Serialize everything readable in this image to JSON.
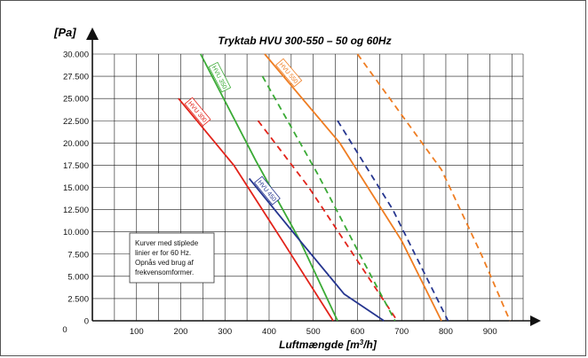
{
  "chart_data": {
    "type": "line",
    "title": "Tryktab HVU 300-550 – 50 og 60Hz",
    "ylabel": "[Pa]",
    "xlabel_main": "Luftmængde [m",
    "xlabel_sup": "3",
    "xlabel_end": "/h]",
    "xlim": [
      0,
      975
    ],
    "ylim": [
      0,
      30000
    ],
    "x_ticks": [
      100,
      200,
      300,
      400,
      500,
      600,
      700,
      800,
      900
    ],
    "y_ticks": [
      0,
      2500,
      5000,
      7500,
      10000,
      12500,
      15000,
      17500,
      20000,
      22500,
      25000,
      27500,
      30000
    ],
    "y_tick_labels": [
      "0",
      "2.500",
      "5.000",
      "7.500",
      "10.000",
      "12.500",
      "15.000",
      "17.500",
      "20.000",
      "22.500",
      "25.000",
      "27.500",
      "30.000"
    ],
    "grid": true,
    "series": [
      {
        "name": "HVU 300",
        "color": "#e2231a",
        "dash": false,
        "points": [
          [
            195,
            25000
          ],
          [
            320,
            17500
          ],
          [
            430,
            9000
          ],
          [
            545,
            0
          ]
        ]
      },
      {
        "name": "",
        "color": "#e2231a",
        "dash": true,
        "points": [
          [
            375,
            22500
          ],
          [
            490,
            15000
          ],
          [
            590,
            7500
          ],
          [
            690,
            0
          ]
        ]
      },
      {
        "name": "HVU 350",
        "color": "#3aaa35",
        "dash": false,
        "points": [
          [
            245,
            30000
          ],
          [
            370,
            18000
          ],
          [
            470,
            9000
          ],
          [
            555,
            0
          ]
        ]
      },
      {
        "name": "",
        "color": "#3aaa35",
        "dash": true,
        "points": [
          [
            385,
            27500
          ],
          [
            510,
            16500
          ],
          [
            610,
            7000
          ],
          [
            685,
            0
          ]
        ]
      },
      {
        "name": "HVU 450",
        "color": "#25358f",
        "dash": false,
        "points": [
          [
            355,
            16000
          ],
          [
            470,
            9000
          ],
          [
            570,
            3000
          ],
          [
            660,
            0
          ]
        ]
      },
      {
        "name": "",
        "color": "#25358f",
        "dash": true,
        "points": [
          [
            555,
            22500
          ],
          [
            680,
            12500
          ],
          [
            755,
            5000
          ],
          [
            805,
            0
          ]
        ]
      },
      {
        "name": "HVU 550",
        "color": "#ef7d22",
        "dash": false,
        "points": [
          [
            390,
            30000
          ],
          [
            560,
            20000
          ],
          [
            700,
            9000
          ],
          [
            790,
            0
          ]
        ]
      },
      {
        "name": "",
        "color": "#ef7d22",
        "dash": true,
        "points": [
          [
            600,
            30000
          ],
          [
            790,
            17000
          ],
          [
            880,
            7500
          ],
          [
            945,
            0
          ]
        ]
      }
    ],
    "note_lines": [
      "Kurver med stiplede",
      "linier er for 60 Hz.",
      "Opnås ved brug af",
      "frekvensomformer."
    ]
  }
}
